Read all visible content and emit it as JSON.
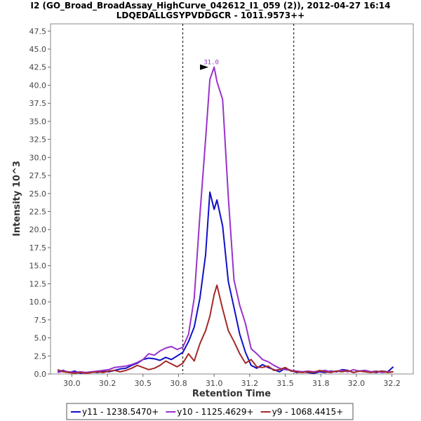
{
  "chart_data": {
    "type": "line",
    "title": "I2 (GO_Broad_BroadAssay_HighCurve_042612_I1_059 (2)), 2012-04-27 16:14",
    "subtitle": "LDQEDALLGSYPVDDGCR - 1011.9573++",
    "xlabel": "Retention Time",
    "ylabel": "Intensity 10^3",
    "xlim": [
      29.85,
      32.4
    ],
    "ylim": [
      0,
      48.5
    ],
    "x_ticks": [
      "30.0",
      "30.2",
      "30.5",
      "30.8",
      "31.0",
      "31.2",
      "31.5",
      "31.8",
      "32.0",
      "32.2"
    ],
    "x_tick_values": [
      30.0,
      30.25,
      30.5,
      30.75,
      31.0,
      31.25,
      31.5,
      31.75,
      32.0,
      32.25
    ],
    "y_ticks": [
      "0.0",
      "2.5",
      "5.0",
      "7.5",
      "10.0",
      "12.5",
      "15.0",
      "17.5",
      "20.0",
      "22.5",
      "25.0",
      "27.5",
      "30.0",
      "32.5",
      "35.0",
      "37.5",
      "40.0",
      "42.5",
      "45.0",
      "47.5"
    ],
    "y_tick_values": [
      0,
      2.5,
      5,
      7.5,
      10,
      12.5,
      15,
      17.5,
      20,
      22.5,
      25,
      27.5,
      30,
      32.5,
      35,
      37.5,
      40,
      42.5,
      45,
      47.5
    ],
    "vertical_lines": [
      30.78,
      31.56
    ],
    "peak_annotation": {
      "text": "31.0",
      "x": 30.97,
      "y": 42.5
    },
    "grid": false,
    "legend_position": "bottom",
    "series": [
      {
        "name": "y11 - 1238.5470+",
        "color": "#1010c8",
        "x": [
          29.9,
          29.94,
          29.98,
          30.02,
          30.06,
          30.1,
          30.14,
          30.18,
          30.22,
          30.26,
          30.3,
          30.34,
          30.38,
          30.42,
          30.46,
          30.5,
          30.54,
          30.58,
          30.62,
          30.66,
          30.7,
          30.74,
          30.78,
          30.82,
          30.86,
          30.9,
          30.94,
          30.97,
          31.0,
          31.02,
          31.06,
          31.1,
          31.14,
          31.18,
          31.22,
          31.26,
          31.3,
          31.34,
          31.38,
          31.42,
          31.46,
          31.5,
          31.54,
          31.58,
          31.62,
          31.66,
          31.7,
          31.74,
          31.78,
          31.82,
          31.86,
          31.9,
          31.94,
          31.98,
          32.02,
          32.06,
          32.1,
          32.14,
          32.18,
          32.22,
          32.26
        ],
        "y": [
          0.3,
          0.5,
          0.2,
          0.4,
          0.1,
          0.2,
          0.3,
          0.2,
          0.4,
          0.3,
          0.5,
          0.7,
          0.8,
          1.2,
          1.5,
          2.0,
          2.2,
          2.1,
          1.9,
          2.3,
          2.0,
          2.5,
          3.0,
          4.5,
          6.5,
          10.5,
          16.5,
          25.2,
          22.8,
          24.1,
          20.5,
          12.8,
          9.2,
          5.5,
          3.0,
          1.2,
          0.8,
          1.3,
          0.9,
          0.6,
          0.3,
          0.8,
          0.5,
          0.2,
          0.3,
          0.2,
          0.1,
          0.3,
          0.2,
          0.4,
          0.3,
          0.6,
          0.5,
          0.2,
          0.4,
          0.5,
          0.3,
          0.2,
          0.4,
          0.3,
          1.0
        ]
      },
      {
        "name": "y10 - 1125.4629+",
        "color": "#9932cc",
        "x": [
          29.9,
          29.94,
          29.98,
          30.02,
          30.06,
          30.1,
          30.14,
          30.18,
          30.22,
          30.26,
          30.3,
          30.34,
          30.38,
          30.42,
          30.46,
          30.5,
          30.54,
          30.58,
          30.62,
          30.66,
          30.7,
          30.74,
          30.78,
          30.82,
          30.86,
          30.9,
          30.94,
          30.97,
          31.0,
          31.02,
          31.06,
          31.1,
          31.14,
          31.18,
          31.22,
          31.26,
          31.3,
          31.34,
          31.38,
          31.42,
          31.46,
          31.5,
          31.54,
          31.58,
          31.62,
          31.66,
          31.7,
          31.74,
          31.78,
          31.82,
          31.86,
          31.9,
          31.94,
          31.98,
          32.02,
          32.06,
          32.1,
          32.14,
          32.18,
          32.22,
          32.26
        ],
        "y": [
          0.2,
          0.4,
          0.3,
          0.2,
          0.3,
          0.2,
          0.3,
          0.4,
          0.5,
          0.6,
          0.9,
          1.0,
          1.1,
          1.3,
          1.6,
          2.0,
          2.8,
          2.6,
          3.2,
          3.6,
          3.8,
          3.4,
          3.7,
          5.5,
          10.5,
          22.0,
          32.5,
          40.8,
          42.5,
          40.5,
          38.0,
          24.5,
          13.0,
          9.5,
          7.0,
          3.5,
          2.8,
          2.0,
          1.7,
          1.2,
          0.8,
          0.6,
          0.5,
          0.4,
          0.3,
          0.4,
          0.3,
          0.4,
          0.5,
          0.3,
          0.4,
          0.5,
          0.3,
          0.6,
          0.4,
          0.5,
          0.3,
          0.4,
          0.2,
          0.3,
          0.3
        ]
      },
      {
        "name": "y9 - 1068.4415+",
        "color": "#a52a2a",
        "x": [
          29.9,
          29.94,
          29.98,
          30.02,
          30.06,
          30.1,
          30.14,
          30.18,
          30.22,
          30.26,
          30.3,
          30.34,
          30.38,
          30.42,
          30.46,
          30.5,
          30.54,
          30.58,
          30.62,
          30.66,
          30.7,
          30.74,
          30.78,
          30.82,
          30.86,
          30.9,
          30.94,
          30.97,
          31.0,
          31.02,
          31.06,
          31.1,
          31.14,
          31.18,
          31.22,
          31.26,
          31.3,
          31.34,
          31.38,
          31.42,
          31.46,
          31.5,
          31.54,
          31.58,
          31.62,
          31.66,
          31.7,
          31.74,
          31.78,
          31.82,
          31.86,
          31.9,
          31.94,
          31.98,
          32.02,
          32.06,
          32.1,
          32.14,
          32.18,
          32.22,
          32.26
        ],
        "y": [
          0.6,
          0.3,
          0.2,
          0.1,
          0.2,
          0.1,
          0.2,
          0.3,
          0.2,
          0.4,
          0.5,
          0.3,
          0.5,
          0.8,
          1.2,
          0.9,
          0.6,
          0.8,
          1.2,
          1.8,
          1.4,
          1.0,
          1.5,
          2.8,
          1.8,
          4.2,
          6.0,
          8.0,
          11.0,
          12.3,
          9.0,
          6.0,
          4.5,
          2.8,
          1.5,
          2.0,
          1.0,
          0.9,
          1.1,
          0.5,
          0.6,
          0.9,
          0.4,
          0.3,
          0.2,
          0.3,
          0.2,
          0.5,
          0.3,
          0.2,
          0.4,
          0.3,
          0.5,
          0.2,
          0.4,
          0.3,
          0.2,
          0.3,
          0.4,
          0.2,
          0.3
        ]
      }
    ]
  }
}
